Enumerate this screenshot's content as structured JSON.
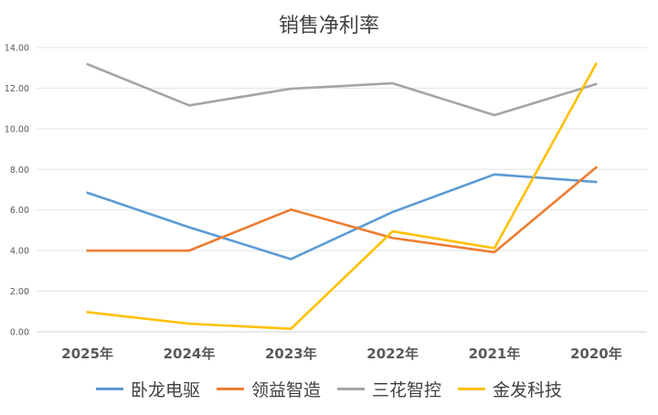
{
  "chart_data": {
    "type": "line",
    "title": "销售净利率",
    "categories": [
      "2025年",
      "2024年",
      "2023年",
      "2022年",
      "2021年",
      "2020年"
    ],
    "ylim": [
      0,
      14
    ],
    "yticks": [
      "0.00",
      "2.00",
      "4.00",
      "6.00",
      "8.00",
      "10.00",
      "12.00",
      "14.00"
    ],
    "grid": true,
    "legend_position": "bottom",
    "series": [
      {
        "name": "卧龙电驱",
        "color": "#5B9BD5",
        "values": [
          6.85,
          5.15,
          3.58,
          5.9,
          7.75,
          7.38
        ]
      },
      {
        "name": "领益智造",
        "color": "#ED7D31",
        "values": [
          4.0,
          4.0,
          6.02,
          4.62,
          3.92,
          8.1
        ]
      },
      {
        "name": "三花智控",
        "color": "#A5A5A5",
        "values": [
          13.18,
          11.15,
          11.97,
          12.24,
          10.67,
          12.2
        ]
      },
      {
        "name": "金发科技",
        "color": "#FFC000",
        "values": [
          0.97,
          0.4,
          0.15,
          4.95,
          4.12,
          13.2
        ]
      }
    ]
  }
}
